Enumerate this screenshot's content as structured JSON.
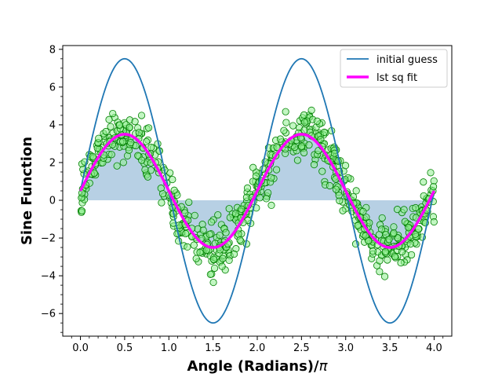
{
  "chart_data": {
    "type": "line",
    "title": "",
    "xlabel_text": "Angle (Radians)/",
    "xlabel_symbol": "π",
    "ylabel": "Sine Function",
    "xlim": [
      -0.2,
      4.2
    ],
    "ylim": [
      -7.2,
      8.2
    ],
    "xticks": [
      0.0,
      0.5,
      1.0,
      1.5,
      2.0,
      2.5,
      3.0,
      3.5,
      4.0
    ],
    "xtick_labels": [
      "0.0",
      "0.5",
      "1.0",
      "1.5",
      "2.0",
      "2.5",
      "3.0",
      "3.5",
      "4.0"
    ],
    "yticks": [
      -6,
      -4,
      -2,
      0,
      2,
      4,
      6,
      8
    ],
    "ytick_labels": [
      "−6",
      "−4",
      "−2",
      "0",
      "2",
      "4",
      "6",
      "8"
    ],
    "grid": false,
    "legend": {
      "placement": "top-right",
      "entries": [
        "initial guess",
        "lst sq fit"
      ]
    },
    "series": [
      {
        "name": "initial guess",
        "kind": "line",
        "color": "#1f77b4",
        "model": {
          "amplitude": 7.0,
          "offset": 0.5
        },
        "x_range": [
          0.0,
          4.0
        ],
        "peaks": [
          [
            0.5,
            7.5
          ],
          [
            2.5,
            7.5
          ]
        ],
        "troughs": [
          [
            1.5,
            -6.5
          ],
          [
            3.5,
            -6.5
          ]
        ]
      },
      {
        "name": "lst sq fit",
        "kind": "line",
        "color": "#ff00ff",
        "model": {
          "amplitude": 3.0,
          "offset": 0.5
        },
        "x_range": [
          0.0,
          4.0
        ],
        "peaks": [
          [
            0.5,
            3.5
          ],
          [
            2.5,
            3.5
          ]
        ],
        "troughs": [
          [
            1.5,
            -2.5
          ],
          [
            3.5,
            -2.5
          ]
        ]
      },
      {
        "kind": "fill_between",
        "color": "#b3cde3",
        "description_of_fill": "area between the fitted curve and y = 0"
      },
      {
        "kind": "scatter",
        "marker_face": "#90ee90",
        "marker_edge": "#008000",
        "n_points": 700,
        "center_model": {
          "amplitude": 3.0,
          "offset": 0.5
        },
        "spread": 0.9,
        "x_range": [
          0.0,
          4.0
        ]
      }
    ]
  }
}
